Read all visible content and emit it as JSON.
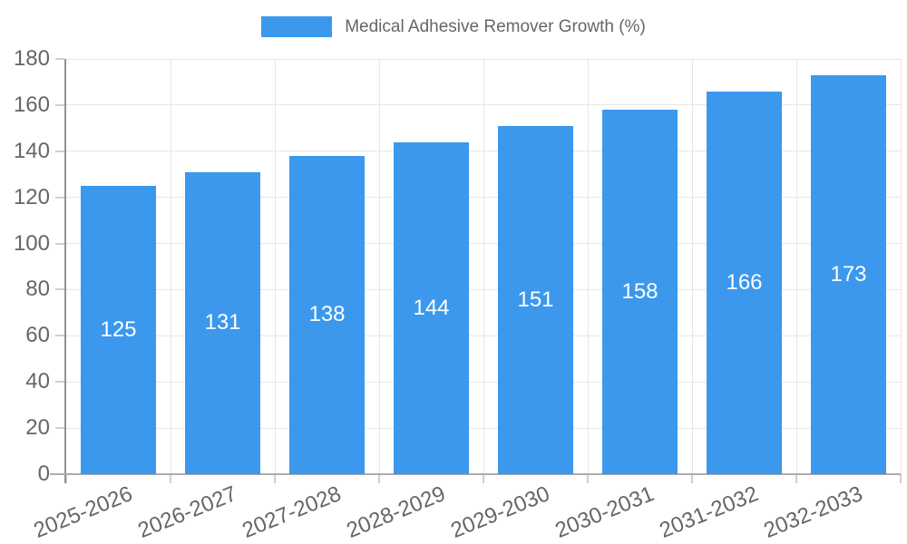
{
  "chart_data": {
    "type": "bar",
    "title": "Medical Adhesive Remover Growth (%)",
    "legend": {
      "position": "top",
      "label": "Medical Adhesive Remover Growth (%)"
    },
    "categories": [
      "2025-2026",
      "2026-2027",
      "2027-2028",
      "2028-2029",
      "2029-2030",
      "2030-2031",
      "2031-2032",
      "2032-2033"
    ],
    "series": [
      {
        "name": "Medical Adhesive Remover Growth (%)",
        "values": [
          125,
          131,
          138,
          144,
          151,
          158,
          166,
          173
        ]
      }
    ],
    "value_labels_shown": true,
    "xlabel": "",
    "ylabel": "",
    "ylim": [
      0,
      180
    ],
    "yticks": [
      0,
      20,
      40,
      60,
      80,
      100,
      120,
      140,
      160,
      180
    ],
    "grid": true,
    "colors": {
      "bar": "#3b98ec",
      "value_label_text": "#ffffff",
      "axis_text": "#666666",
      "gridline": "#e6e6e6",
      "axis_line_y": "#929292",
      "axis_line_x": "#ababab",
      "tick_mark": "#cfcfcf",
      "background": "#ffffff"
    }
  }
}
